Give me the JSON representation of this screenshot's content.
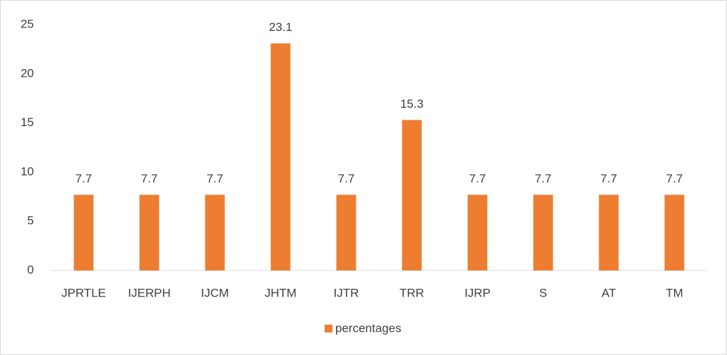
{
  "chart_data": {
    "type": "bar",
    "categories": [
      "JPRTLE",
      "IJERPH",
      "IJCM",
      "JHTM",
      "IJTR",
      "TRR",
      "IJRP",
      "S",
      "AT",
      "TM"
    ],
    "series": [
      {
        "name": "percentages",
        "color": "#ed7d31",
        "values": [
          7.7,
          7.7,
          7.7,
          23.1,
          7.7,
          15.3,
          7.7,
          7.7,
          7.7,
          7.7
        ]
      }
    ],
    "ylim": [
      0,
      25
    ],
    "yticks": [
      0,
      5,
      10,
      15,
      20,
      25
    ],
    "grid": false,
    "legend": "bottom",
    "data_labels": true
  }
}
